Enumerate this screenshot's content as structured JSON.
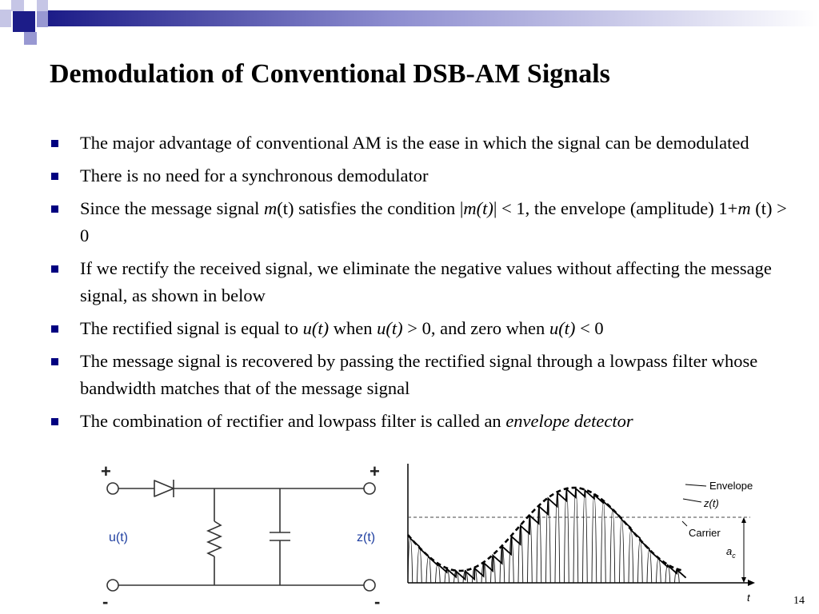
{
  "slide": {
    "title": "Demodulation of Conventional DSB-AM Signals",
    "page_number": "14",
    "accent_color": "#000080",
    "bullets": [
      [
        {
          "t": "The major advantage of conventional AM is the ease in which the signal can be demodulated"
        }
      ],
      [
        {
          "t": "There is no need for a synchronous demodulator"
        }
      ],
      [
        {
          "t": "Since the message signal "
        },
        {
          "t": "m",
          "i": true
        },
        {
          "t": "(t) satisfies the condition |"
        },
        {
          "t": "m(t)",
          "i": true
        },
        {
          "t": "| < 1, the envelope (amplitude) 1+"
        },
        {
          "t": "m",
          "i": true
        },
        {
          "t": " (t) > 0"
        }
      ],
      [
        {
          "t": "If we rectify the received signal, we eliminate the negative values without affecting the message signal, as shown in below"
        }
      ],
      [
        {
          "t": "The rectified signal is equal to "
        },
        {
          "t": "u(t)",
          "i": true
        },
        {
          "t": " when "
        },
        {
          "t": "u(t)",
          "i": true
        },
        {
          "t": " > 0, and zero when "
        },
        {
          "t": "u(t)",
          "i": true
        },
        {
          "t": " < 0"
        }
      ],
      [
        {
          "t": "The message signal is recovered by passing the rectified signal through a lowpass filter whose bandwidth matches that of the message signal"
        }
      ],
      [
        {
          "t": "The combination of  rectifier and lowpass filter is called an "
        },
        {
          "t": "envelope detector",
          "i": true
        }
      ]
    ]
  },
  "circuit": {
    "plus_left": "+",
    "plus_right": "+",
    "minus_left": "-",
    "minus_right": "-",
    "input_label": "u(t)",
    "output_label": "z(t)",
    "label_color": "#1f3fa0"
  },
  "waveform": {
    "envelope_label": "Envelope",
    "output_label": "z(t)",
    "carrier_label": "Carrier",
    "amplitude_label": "a",
    "amplitude_subscript": "c",
    "time_label": "t"
  }
}
